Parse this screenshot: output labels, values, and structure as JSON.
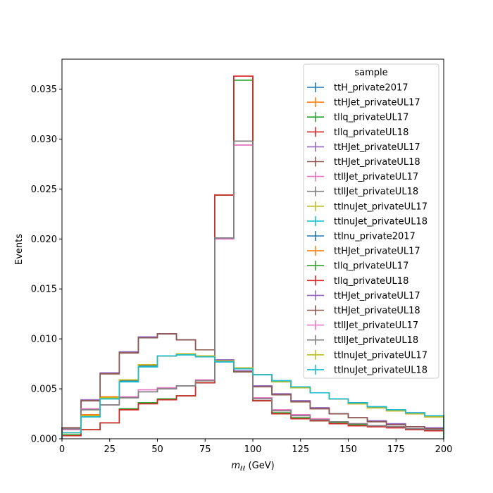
{
  "chart_data": {
    "type": "line",
    "xlabel_main": "m",
    "xlabel_sub": "ℓℓ",
    "xlabel_unit": " (GeV)",
    "ylabel": "Events",
    "xlim": [
      0,
      200
    ],
    "ylim": [
      0,
      0.038
    ],
    "x_ticks": [
      "0",
      "25",
      "50",
      "75",
      "100",
      "125",
      "150",
      "175",
      "200"
    ],
    "y_ticks": [
      "0.000",
      "0.005",
      "0.010",
      "0.015",
      "0.020",
      "0.025",
      "0.030",
      "0.035"
    ],
    "grid": false,
    "legend_title": "sample",
    "legend_position": "top-right",
    "bin_edges": [
      0,
      10,
      20,
      30,
      40,
      50,
      60,
      70,
      80,
      90,
      100,
      110,
      120,
      130,
      140,
      150,
      160,
      170,
      180,
      190,
      200
    ],
    "series": [
      {
        "name": "ttH_private2017",
        "color": "#1f77b4",
        "values": [
          0.0006,
          0.0023,
          0.0041,
          0.0058,
          0.0073,
          0.0083,
          0.0085,
          0.0083,
          0.0078,
          0.0071,
          0.0064,
          0.0058,
          0.0051,
          0.0046,
          0.004,
          0.0036,
          0.0032,
          0.0029,
          0.0026,
          0.0023
        ]
      },
      {
        "name": "ttHJet_privateUL17",
        "color": "#ff7f0e",
        "values": [
          0.0006,
          0.0024,
          0.0042,
          0.0059,
          0.0074,
          0.0083,
          0.0085,
          0.0083,
          0.0078,
          0.0071,
          0.0064,
          0.0057,
          0.0051,
          0.0046,
          0.004,
          0.0035,
          0.0031,
          0.0028,
          0.0025,
          0.0022
        ]
      },
      {
        "name": "tllq_privateUL17",
        "color": "#2ca02c",
        "values": [
          0.0004,
          0.0009,
          0.0016,
          0.003,
          0.0036,
          0.004,
          0.0043,
          0.0056,
          0.0244,
          0.0359,
          0.0038,
          0.0026,
          0.0021,
          0.0018,
          0.0016,
          0.0014,
          0.0013,
          0.0012,
          0.001,
          0.0009
        ]
      },
      {
        "name": "tllq_privateUL18",
        "color": "#d62728",
        "values": [
          0.0003,
          0.0009,
          0.0016,
          0.0029,
          0.0035,
          0.0039,
          0.0043,
          0.0056,
          0.0244,
          0.0363,
          0.0038,
          0.0025,
          0.002,
          0.0018,
          0.0015,
          0.0013,
          0.0012,
          0.0011,
          0.0009,
          0.0008
        ]
      },
      {
        "name": "ttHJet_privateUL17",
        "color": "#9467bd",
        "values": [
          0.0011,
          0.0039,
          0.0066,
          0.0087,
          0.0102,
          0.0105,
          0.0099,
          0.0089,
          0.0079,
          0.0068,
          0.0053,
          0.0045,
          0.0038,
          0.0031,
          0.0025,
          0.0021,
          0.0018,
          0.0015,
          0.0012,
          0.0011
        ]
      },
      {
        "name": "ttHJet_privateUL18",
        "color": "#8c564b",
        "values": [
          0.0011,
          0.0038,
          0.0065,
          0.0086,
          0.0101,
          0.0105,
          0.0099,
          0.0089,
          0.0078,
          0.0067,
          0.0052,
          0.0044,
          0.0037,
          0.003,
          0.0025,
          0.0021,
          0.0017,
          0.0014,
          0.0012,
          0.001
        ]
      },
      {
        "name": "ttllJet_privateUL17",
        "color": "#e377c2",
        "values": [
          0.0009,
          0.003,
          0.0034,
          0.0042,
          0.0049,
          0.0051,
          0.0053,
          0.0059,
          0.02,
          0.0294,
          0.0041,
          0.0029,
          0.0024,
          0.002,
          0.0017,
          0.0015,
          0.0013,
          0.0012,
          0.001,
          0.0009
        ]
      },
      {
        "name": "ttllJet_privateUL18",
        "color": "#7f7f7f",
        "values": [
          0.001,
          0.0029,
          0.0034,
          0.0041,
          0.0047,
          0.005,
          0.0053,
          0.0058,
          0.0201,
          0.0298,
          0.004,
          0.0028,
          0.0023,
          0.0019,
          0.0017,
          0.0015,
          0.0013,
          0.0012,
          0.001,
          0.0009
        ]
      },
      {
        "name": "ttlnuJet_privateUL17",
        "color": "#bcbd22",
        "values": [
          0.0006,
          0.0023,
          0.0041,
          0.0059,
          0.0074,
          0.0083,
          0.0085,
          0.0083,
          0.0078,
          0.0071,
          0.0064,
          0.0057,
          0.0051,
          0.0046,
          0.004,
          0.0035,
          0.0031,
          0.0028,
          0.0025,
          0.0022
        ]
      },
      {
        "name": "ttlnuJet_privateUL18",
        "color": "#17becf",
        "values": [
          0.0006,
          0.0022,
          0.004,
          0.0057,
          0.0072,
          0.0083,
          0.0084,
          0.0082,
          0.0077,
          0.007,
          0.0064,
          0.0058,
          0.0052,
          0.0046,
          0.004,
          0.0036,
          0.0032,
          0.0029,
          0.0026,
          0.0023
        ]
      },
      {
        "name": "ttlnu_private2017",
        "color": "#1f77b4",
        "values": [
          0.0006,
          0.0022,
          0.004,
          0.0057,
          0.0072,
          0.0083,
          0.0084,
          0.0082,
          0.0077,
          0.007,
          0.0064,
          0.0058,
          0.0052,
          0.0046,
          0.004,
          0.0036,
          0.0032,
          0.0029,
          0.0026,
          0.0023
        ]
      },
      {
        "name": "ttHJet_privateUL17",
        "color": "#ff7f0e",
        "values": [
          0.0006,
          0.0024,
          0.0042,
          0.0059,
          0.0074,
          0.0083,
          0.0085,
          0.0083,
          0.0078,
          0.0071,
          0.0064,
          0.0057,
          0.0051,
          0.0046,
          0.004,
          0.0035,
          0.0031,
          0.0028,
          0.0025,
          0.0022
        ]
      },
      {
        "name": "tllq_privateUL17",
        "color": "#2ca02c",
        "values": [
          0.0004,
          0.0009,
          0.0016,
          0.003,
          0.0036,
          0.004,
          0.0043,
          0.0056,
          0.0244,
          0.0359,
          0.0038,
          0.0026,
          0.0021,
          0.0018,
          0.0016,
          0.0014,
          0.0013,
          0.0012,
          0.001,
          0.0009
        ]
      },
      {
        "name": "tllq_privateUL18",
        "color": "#d62728",
        "values": [
          0.0003,
          0.0009,
          0.0016,
          0.0029,
          0.0035,
          0.0039,
          0.0043,
          0.0056,
          0.0244,
          0.0363,
          0.0038,
          0.0025,
          0.002,
          0.0018,
          0.0015,
          0.0013,
          0.0012,
          0.0011,
          0.0009,
          0.0008
        ]
      },
      {
        "name": "ttHJet_privateUL17",
        "color": "#9467bd",
        "values": [
          0.0011,
          0.0039,
          0.0066,
          0.0087,
          0.0102,
          0.0105,
          0.0099,
          0.0089,
          0.0079,
          0.0068,
          0.0053,
          0.0045,
          0.0038,
          0.0031,
          0.0025,
          0.0021,
          0.0018,
          0.0015,
          0.0012,
          0.0011
        ]
      },
      {
        "name": "ttHJet_privateUL18",
        "color": "#8c564b",
        "values": [
          0.0011,
          0.0038,
          0.0065,
          0.0086,
          0.0101,
          0.0105,
          0.0099,
          0.0089,
          0.0078,
          0.0067,
          0.0052,
          0.0044,
          0.0037,
          0.003,
          0.0025,
          0.0021,
          0.0017,
          0.0014,
          0.0012,
          0.001
        ]
      },
      {
        "name": "ttllJet_privateUL17",
        "color": "#e377c2",
        "values": [
          0.0009,
          0.003,
          0.0034,
          0.0042,
          0.0049,
          0.0051,
          0.0053,
          0.0059,
          0.02,
          0.0294,
          0.0041,
          0.0029,
          0.0024,
          0.002,
          0.0017,
          0.0015,
          0.0013,
          0.0012,
          0.001,
          0.0009
        ]
      },
      {
        "name": "ttllJet_privateUL18",
        "color": "#7f7f7f",
        "values": [
          0.001,
          0.0029,
          0.0034,
          0.0041,
          0.0047,
          0.005,
          0.0053,
          0.0058,
          0.0201,
          0.0298,
          0.004,
          0.0028,
          0.0023,
          0.0019,
          0.0017,
          0.0015,
          0.0013,
          0.0012,
          0.001,
          0.0009
        ]
      },
      {
        "name": "ttlnuJet_privateUL17",
        "color": "#bcbd22",
        "values": [
          0.0006,
          0.0023,
          0.0041,
          0.0059,
          0.0074,
          0.0083,
          0.0085,
          0.0083,
          0.0078,
          0.0071,
          0.0064,
          0.0057,
          0.0051,
          0.0046,
          0.004,
          0.0035,
          0.0031,
          0.0028,
          0.0025,
          0.0022
        ]
      },
      {
        "name": "ttlnuJet_privateUL18",
        "color": "#17becf",
        "values": [
          0.0006,
          0.0022,
          0.004,
          0.0057,
          0.0072,
          0.0083,
          0.0084,
          0.0082,
          0.0077,
          0.007,
          0.0064,
          0.0058,
          0.0052,
          0.0046,
          0.004,
          0.0036,
          0.0032,
          0.0029,
          0.0026,
          0.0023
        ]
      }
    ]
  }
}
